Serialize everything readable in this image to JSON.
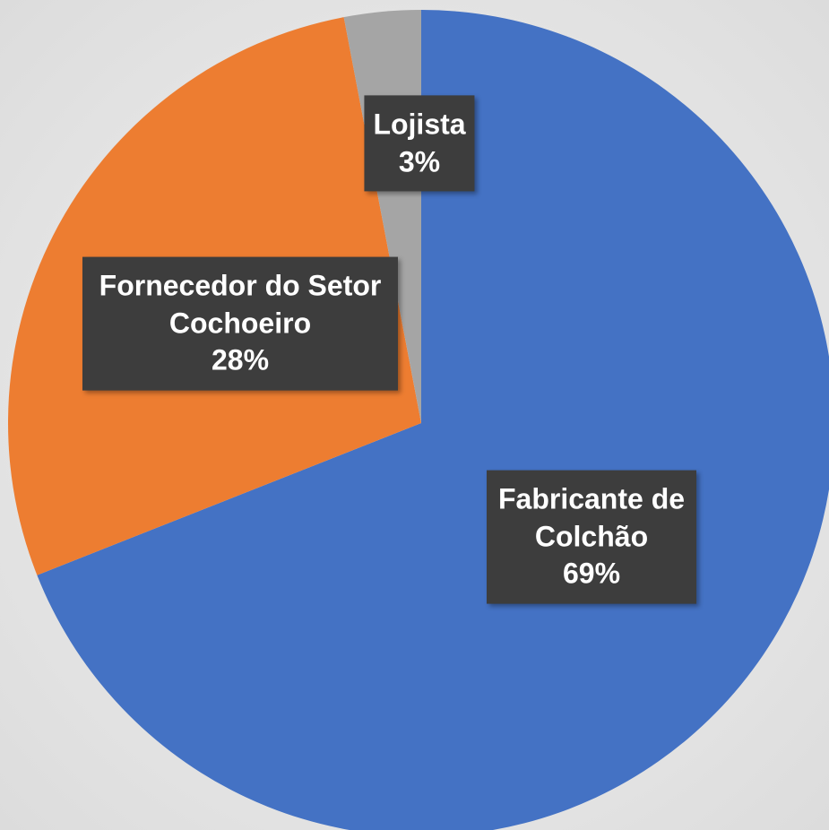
{
  "chart_data": {
    "type": "pie",
    "categories": [
      "Fabricante de Colchão",
      "Fornecedor do Setor Cochoeiro",
      "Lojista"
    ],
    "values": [
      69,
      28,
      3
    ],
    "value_labels": [
      "69%",
      "28%",
      "3%"
    ],
    "colors": [
      "#4472c4",
      "#ed7d31",
      "#a5a5a5"
    ]
  }
}
